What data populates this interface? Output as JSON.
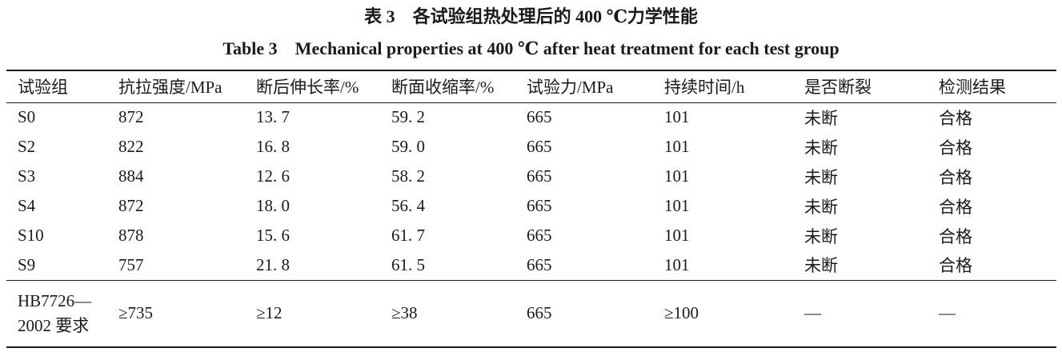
{
  "titles": {
    "zh": "表 3　各试验组热处理后的 400 ℃力学性能",
    "en": "Table 3　Mechanical properties at 400 ℃ after heat treatment for each test group"
  },
  "table": {
    "columns": [
      "试验组",
      "抗拉强度/MPa",
      "断后伸长率/%",
      "断面收缩率/%",
      "试验力/MPa",
      "持续时间/h",
      "是否断裂",
      "检测结果"
    ],
    "rows": [
      {
        "cells": [
          "S0",
          "872",
          "13. 7",
          "59. 2",
          "665",
          "101",
          "未断",
          "合格"
        ]
      },
      {
        "cells": [
          "S2",
          "822",
          "16. 8",
          "59. 0",
          "665",
          "101",
          "未断",
          "合格"
        ]
      },
      {
        "cells": [
          "S3",
          "884",
          "12. 6",
          "58. 2",
          "665",
          "101",
          "未断",
          "合格"
        ]
      },
      {
        "cells": [
          "S4",
          "872",
          "18. 0",
          "56. 4",
          "665",
          "101",
          "未断",
          "合格"
        ]
      },
      {
        "cells": [
          "S10",
          "878",
          "15. 6",
          "61. 7",
          "665",
          "101",
          "未断",
          "合格"
        ]
      },
      {
        "cells": [
          "S9",
          "757",
          "21. 8",
          "61. 5",
          "665",
          "101",
          "未断",
          "合格"
        ]
      },
      {
        "cells": [
          "HB7726—\n2002 要求",
          "≥735",
          "≥12",
          "≥38",
          "665",
          "≥100",
          "—",
          "—"
        ]
      }
    ]
  },
  "colors": {
    "background": "#ffffff",
    "text": "#1a1a1a",
    "rule": "#1c1c1c"
  }
}
